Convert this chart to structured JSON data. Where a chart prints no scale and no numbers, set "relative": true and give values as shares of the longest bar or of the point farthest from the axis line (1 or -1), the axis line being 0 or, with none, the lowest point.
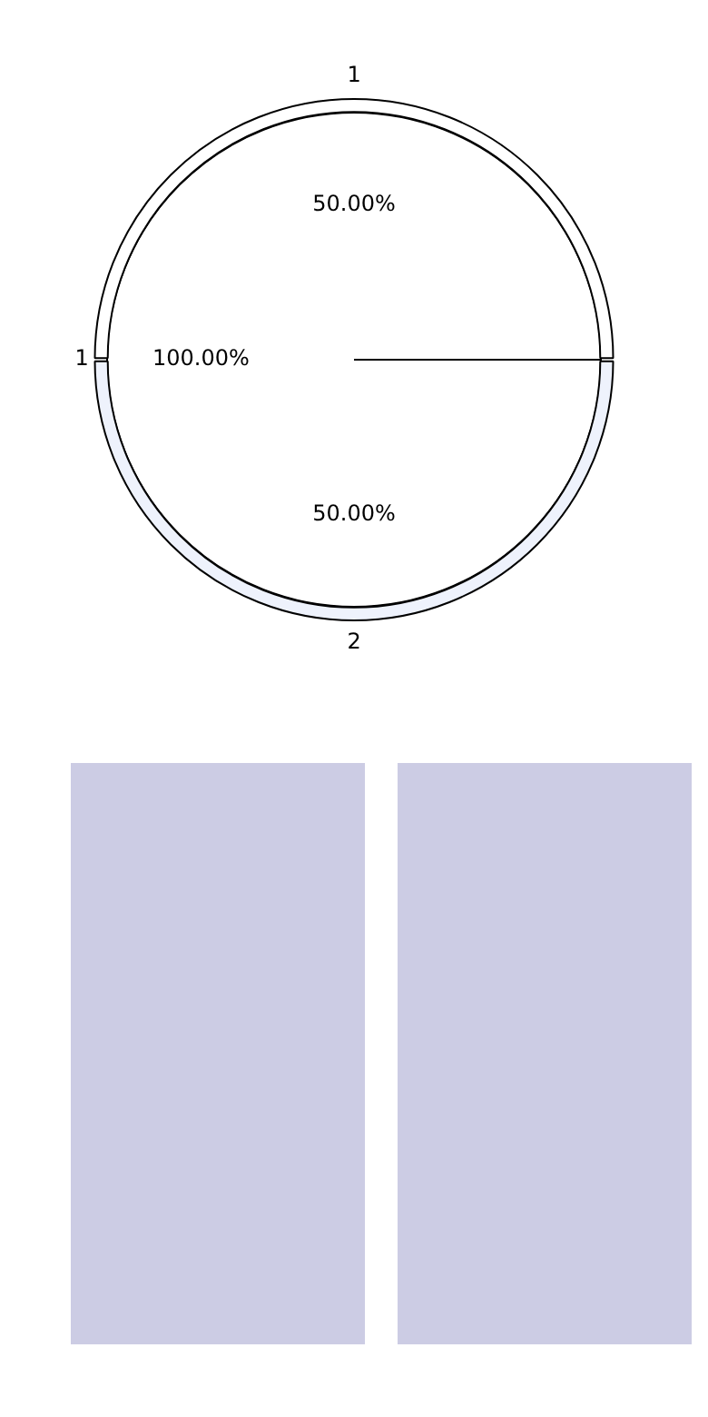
{
  "chart_data": [
    {
      "type": "pie",
      "categories": [
        "1"
      ],
      "values": [
        100
      ],
      "colors": [
        "#ffffff"
      ],
      "value_labels": [
        "100.00%"
      ]
    },
    {
      "type": "donut",
      "categories": [
        "1",
        "2"
      ],
      "values": [
        50,
        50
      ],
      "colors": [
        "#ffffff",
        "#eef2fc"
      ],
      "value_labels": [
        "50.00%",
        "50.00%"
      ]
    },
    {
      "type": "bar",
      "categories": [
        null,
        null
      ],
      "values": [
        1,
        1
      ],
      "colors": [
        "#cccce4",
        "#cccce4"
      ],
      "relative": true
    }
  ]
}
